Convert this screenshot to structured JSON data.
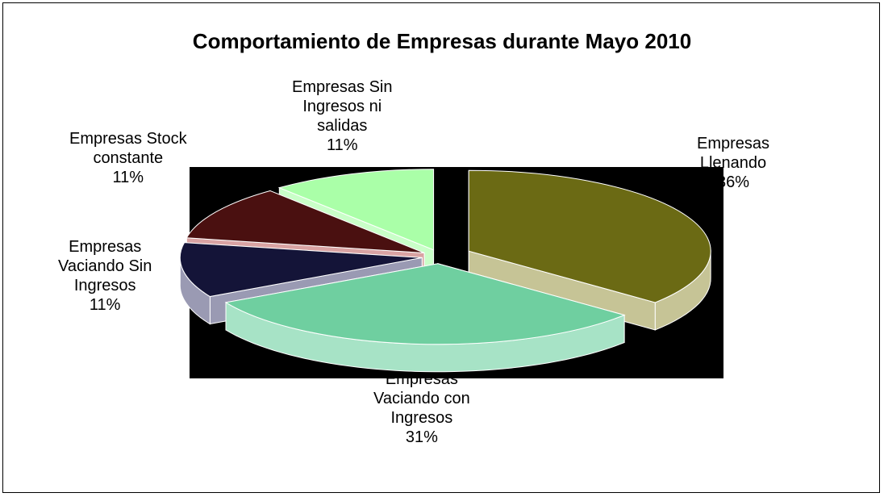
{
  "chart_data": {
    "type": "pie",
    "title": "Comportamiento de Empresas durante Mayo 2010",
    "legend": "none",
    "slices": [
      {
        "name": "Empresas Llenando",
        "lines": [
          "Empresas",
          "Llenando",
          "36%"
        ],
        "value": 36,
        "color": "#6b6a14",
        "side": "#c6c496"
      },
      {
        "name": "Empresas Vaciando con Ingresos",
        "lines": [
          "Empresas",
          "Vaciando con",
          "Ingresos",
          "31%"
        ],
        "value": 31,
        "color": "#6fcfa0",
        "side": "#a7e3c6"
      },
      {
        "name": "Empresas Vaciando Sin Ingresos",
        "lines": [
          "Empresas",
          "Vaciando Sin",
          "Ingresos",
          "11%"
        ],
        "value": 11,
        "color": "#141438",
        "side": "#9a9ab3"
      },
      {
        "name": "Empresas Stock constante",
        "lines": [
          "Empresas Stock",
          "constante",
          "11%"
        ],
        "value": 11,
        "color": "#4a1010",
        "side": "#d9a3a3"
      },
      {
        "name": "Empresas Sin Ingresos ni salidas",
        "lines": [
          "Empresas Sin",
          "Ingresos ni",
          "salidas",
          "11%"
        ],
        "value": 11,
        "color": "#aaffa8",
        "side": "#c9ffc8"
      }
    ]
  }
}
